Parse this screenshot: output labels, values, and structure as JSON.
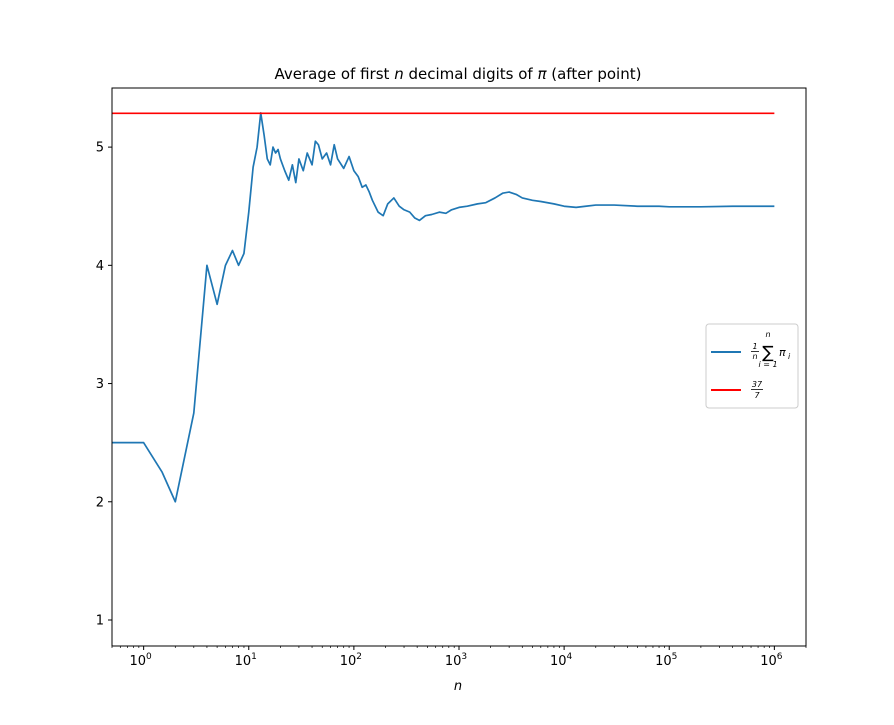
{
  "chart_data": {
    "type": "line",
    "title_prefix": "Average of first ",
    "title_var": "n",
    "title_mid": " decimal digits of ",
    "title_sym": "π",
    "title_suffix": " (after point)",
    "xlabel": "n",
    "xscale": "log",
    "xlim": [
      0.5,
      2000000
    ],
    "ylim": [
      0.78,
      5.5
    ],
    "grid": false,
    "legend_position": "center-right",
    "x_ticks": [
      {
        "value": 1,
        "base": "10",
        "exp": "0"
      },
      {
        "value": 10,
        "base": "10",
        "exp": "1"
      },
      {
        "value": 100,
        "base": "10",
        "exp": "2"
      },
      {
        "value": 1000,
        "base": "10",
        "exp": "3"
      },
      {
        "value": 10000,
        "base": "10",
        "exp": "4"
      },
      {
        "value": 100000,
        "base": "10",
        "exp": "5"
      },
      {
        "value": 1000000,
        "base": "10",
        "exp": "6"
      }
    ],
    "y_ticks": [
      {
        "value": 1,
        "label": "1"
      },
      {
        "value": 2,
        "label": "2"
      },
      {
        "value": 3,
        "label": "3"
      },
      {
        "value": 4,
        "label": "4"
      },
      {
        "value": 5,
        "label": "5"
      }
    ],
    "series": [
      {
        "key": "avg",
        "color": "#1f77b4",
        "points": [
          [
            0.5,
            2.5
          ],
          [
            1,
            2.5
          ],
          [
            1.5,
            2.25
          ],
          [
            2,
            2.0
          ],
          [
            3,
            2.75
          ],
          [
            4,
            4.0
          ],
          [
            5,
            3.67
          ],
          [
            6,
            4.0
          ],
          [
            7,
            4.125
          ],
          [
            8,
            4.0
          ],
          [
            9,
            4.1
          ],
          [
            10,
            4.45
          ],
          [
            11,
            4.83
          ],
          [
            12,
            5.0
          ],
          [
            13,
            5.29
          ],
          [
            14,
            5.1
          ],
          [
            15,
            4.9
          ],
          [
            16,
            4.85
          ],
          [
            17,
            5.0
          ],
          [
            18,
            4.95
          ],
          [
            19,
            4.98
          ],
          [
            20,
            4.9
          ],
          [
            22,
            4.8
          ],
          [
            24,
            4.72
          ],
          [
            26,
            4.85
          ],
          [
            28,
            4.7
          ],
          [
            30,
            4.9
          ],
          [
            33,
            4.8
          ],
          [
            36,
            4.95
          ],
          [
            40,
            4.85
          ],
          [
            43,
            5.05
          ],
          [
            46,
            5.02
          ],
          [
            50,
            4.9
          ],
          [
            55,
            4.95
          ],
          [
            60,
            4.85
          ],
          [
            65,
            5.02
          ],
          [
            70,
            4.9
          ],
          [
            80,
            4.82
          ],
          [
            90,
            4.92
          ],
          [
            100,
            4.8
          ],
          [
            110,
            4.75
          ],
          [
            120,
            4.66
          ],
          [
            130,
            4.68
          ],
          [
            140,
            4.62
          ],
          [
            150,
            4.55
          ],
          [
            170,
            4.45
          ],
          [
            190,
            4.42
          ],
          [
            210,
            4.52
          ],
          [
            240,
            4.57
          ],
          [
            270,
            4.5
          ],
          [
            300,
            4.47
          ],
          [
            340,
            4.45
          ],
          [
            380,
            4.4
          ],
          [
            420,
            4.38
          ],
          [
            480,
            4.42
          ],
          [
            550,
            4.43
          ],
          [
            650,
            4.45
          ],
          [
            750,
            4.44
          ],
          [
            850,
            4.47
          ],
          [
            1000,
            4.49
          ],
          [
            1200,
            4.5
          ],
          [
            1500,
            4.52
          ],
          [
            1800,
            4.53
          ],
          [
            2200,
            4.57
          ],
          [
            2600,
            4.61
          ],
          [
            3000,
            4.62
          ],
          [
            3500,
            4.6
          ],
          [
            4000,
            4.57
          ],
          [
            5000,
            4.55
          ],
          [
            6000,
            4.54
          ],
          [
            8000,
            4.52
          ],
          [
            10000,
            4.5
          ],
          [
            13000,
            4.49
          ],
          [
            16000,
            4.5
          ],
          [
            20000,
            4.51
          ],
          [
            30000,
            4.51
          ],
          [
            50000,
            4.5
          ],
          [
            80000,
            4.5
          ],
          [
            100000,
            4.495
          ],
          [
            200000,
            4.495
          ],
          [
            400000,
            4.5
          ],
          [
            700000,
            4.5
          ],
          [
            1000000,
            4.5
          ]
        ]
      },
      {
        "key": "ref",
        "color": "#ff0000",
        "points": [
          [
            0.5,
            5.2857
          ],
          [
            1000000,
            5.2857
          ]
        ]
      }
    ],
    "legend": {
      "avg": {
        "frac_num": "1",
        "frac_den": "n",
        "sum": "∑",
        "sum_top": "n",
        "sum_bottom": "i = 1",
        "term": "π",
        "term_sub": "i"
      },
      "ref": {
        "frac_num": "37",
        "frac_den": "7"
      }
    }
  }
}
